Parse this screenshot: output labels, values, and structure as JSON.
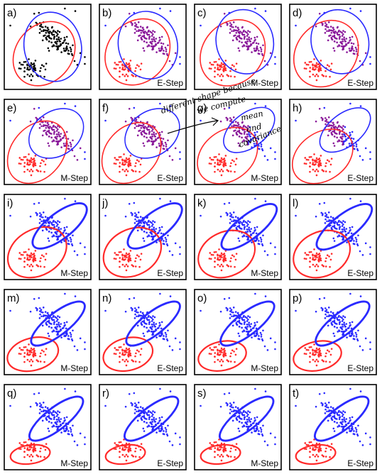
{
  "colors": {
    "cluster_a": "#ff2a2a",
    "cluster_b": "#2a2aff",
    "mixed": "#8a1a9a",
    "unassigned": "#000000",
    "frame": "#000000"
  },
  "panels": [
    {
      "label": "a)",
      "step": ""
    },
    {
      "label": "b)",
      "step": "E-Step"
    },
    {
      "label": "c)",
      "step": "M-Step"
    },
    {
      "label": "d)",
      "step": "E-Step"
    },
    {
      "label": "e)",
      "step": "M-Step"
    },
    {
      "label": "f)",
      "step": "E-Step"
    },
    {
      "label": "g)",
      "step": "M-Step"
    },
    {
      "label": "h)",
      "step": "E-Step"
    },
    {
      "label": "i)",
      "step": "M-Step"
    },
    {
      "label": "j)",
      "step": "E-Step"
    },
    {
      "label": "k)",
      "step": "M-Step"
    },
    {
      "label": "l)",
      "step": "E-Step"
    },
    {
      "label": "m)",
      "step": "M-Step"
    },
    {
      "label": "n)",
      "step": "E-Step"
    },
    {
      "label": "o)",
      "step": "M-Step"
    },
    {
      "label": "p)",
      "step": "E-Step"
    },
    {
      "label": "q)",
      "step": "M-Step"
    },
    {
      "label": "r)",
      "step": "E-Step"
    },
    {
      "label": "s)",
      "step": "M-Step"
    },
    {
      "label": "t)",
      "step": "E-Step"
    }
  ],
  "annotation": {
    "lines": [
      "different shape because",
      "we compute",
      "mean",
      "and",
      "covariance"
    ]
  }
}
